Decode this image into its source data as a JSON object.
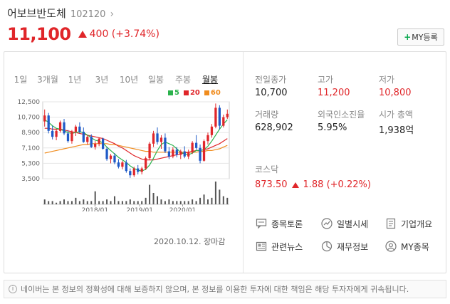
{
  "header": {
    "stock_name": "어보브반도체",
    "stock_code": "102120",
    "price": "11,100",
    "change": "400 (+3.74%)",
    "my_button": "MY등록"
  },
  "tabs": [
    "1일",
    "3개월",
    "1년",
    "3년",
    "10년",
    "일봉",
    "주봉",
    "월봉"
  ],
  "active_tab": "월봉",
  "legend": [
    {
      "label": "5",
      "color": "#2bb24c"
    },
    {
      "label": "20",
      "color": "#e0262a"
    },
    {
      "label": "60",
      "color": "#f08c1e"
    }
  ],
  "chart_data": {
    "type": "candlestick",
    "y_ticks": [
      "12,500",
      "10,700",
      "8,900",
      "7,100",
      "5,300",
      "3,500"
    ],
    "x_ticks": [
      "2018/01",
      "2019/01",
      "2020/01"
    ],
    "ylim": [
      3500,
      12500
    ],
    "candles": [
      [
        10200,
        11600,
        9600,
        10900
      ],
      [
        10900,
        11200,
        8800,
        9100
      ],
      [
        9100,
        9700,
        8100,
        8400
      ],
      [
        8400,
        9300,
        8000,
        9100
      ],
      [
        9100,
        10300,
        8900,
        10100
      ],
      [
        10100,
        10500,
        8600,
        8800
      ],
      [
        8800,
        9200,
        7700,
        7900
      ],
      [
        7900,
        9200,
        7600,
        9000
      ],
      [
        9000,
        9800,
        8500,
        9600
      ],
      [
        9600,
        10100,
        8800,
        9000
      ],
      [
        9000,
        9500,
        7700,
        7800
      ],
      [
        7800,
        8600,
        7500,
        8400
      ],
      [
        8400,
        8700,
        7100,
        7200
      ],
      [
        7200,
        7900,
        6900,
        7600
      ],
      [
        7600,
        8300,
        7300,
        8200
      ],
      [
        8200,
        8300,
        6900,
        7000
      ],
      [
        7000,
        7200,
        5600,
        5800
      ],
      [
        5800,
        6400,
        5300,
        6200
      ],
      [
        6200,
        6500,
        5200,
        5400
      ],
      [
        5400,
        5800,
        4700,
        4900
      ],
      [
        4900,
        5600,
        4600,
        5400
      ],
      [
        5400,
        5700,
        4200,
        4400
      ],
      [
        4400,
        4700,
        3600,
        3900
      ],
      [
        3900,
        4900,
        3700,
        4700
      ],
      [
        4700,
        5100,
        4000,
        4300
      ],
      [
        4300,
        4900,
        4000,
        4700
      ],
      [
        4700,
        6100,
        4500,
        5900
      ],
      [
        5900,
        7800,
        5700,
        7600
      ],
      [
        7600,
        9100,
        7200,
        8800
      ],
      [
        8800,
        9500,
        7500,
        7800
      ],
      [
        7800,
        8600,
        7000,
        8300
      ],
      [
        8300,
        8800,
        6500,
        6700
      ],
      [
        6700,
        7200,
        5800,
        6100
      ],
      [
        6100,
        7200,
        5900,
        6900
      ],
      [
        6900,
        7200,
        6000,
        6300
      ],
      [
        6300,
        6900,
        5800,
        6700
      ],
      [
        6700,
        7300,
        5900,
        6100
      ],
      [
        6100,
        6900,
        5800,
        6600
      ],
      [
        6600,
        7900,
        6400,
        7700
      ],
      [
        7700,
        8600,
        6900,
        7100
      ],
      [
        7100,
        7500,
        5300,
        5600
      ],
      [
        5600,
        8100,
        5500,
        7900
      ],
      [
        7900,
        8900,
        7500,
        8600
      ],
      [
        8600,
        9900,
        8300,
        9600
      ],
      [
        9600,
        12300,
        9400,
        11800
      ],
      [
        11800,
        12100,
        9300,
        9700
      ],
      [
        9700,
        11000,
        9500,
        10700
      ],
      [
        10700,
        11600,
        10500,
        11100
      ]
    ],
    "ma5": [
      10400,
      10100,
      9700,
      9400,
      9300,
      9100,
      8900,
      8800,
      8900,
      9000,
      8900,
      8600,
      8300,
      8000,
      7900,
      7700,
      7200,
      6800,
      6400,
      6000,
      5700,
      5400,
      5000,
      4700,
      4500,
      4400,
      4600,
      5100,
      5900,
      6800,
      7500,
      7800,
      7600,
      7400,
      7000,
      6600,
      6400,
      6300,
      6500,
      6800,
      6800,
      6900,
      7300,
      7900,
      8600,
      9300,
      9900,
      10400
    ],
    "ma20": [
      9400,
      9400,
      9300,
      9300,
      9300,
      9200,
      9100,
      9000,
      8900,
      8800,
      8700,
      8600,
      8500,
      8400,
      8300,
      8200,
      8000,
      7800,
      7600,
      7300,
      7100,
      6800,
      6500,
      6200,
      6000,
      5800,
      5700,
      5700,
      5700,
      5800,
      5900,
      6000,
      6100,
      6200,
      6300,
      6400,
      6500,
      6600,
      6700,
      6800,
      6800,
      6900,
      7000,
      7200,
      7400,
      7600,
      7900,
      8200
    ],
    "ma60": [
      6500,
      6600,
      6700,
      6800,
      6900,
      7000,
      7100,
      7200,
      7300,
      7400,
      7500,
      7500,
      7600,
      7600,
      7600,
      7600,
      7600,
      7500,
      7500,
      7400,
      7300,
      7200,
      7100,
      7000,
      6900,
      6800,
      6700,
      6700,
      6600,
      6600,
      6600,
      6600,
      6600,
      6600,
      6600,
      6600,
      6600,
      6600,
      6600,
      6600,
      6700,
      6700,
      6800,
      6800,
      6900,
      7000,
      7200,
      7400
    ],
    "volume": [
      3,
      2,
      2,
      1,
      2,
      3,
      2,
      2,
      4,
      2,
      3,
      2,
      2,
      8,
      2,
      2,
      3,
      2,
      5,
      2,
      2,
      2,
      3,
      2,
      2,
      2,
      4,
      12,
      7,
      5,
      3,
      2,
      3,
      2,
      2,
      2,
      2,
      2,
      3,
      2,
      4,
      6,
      3,
      4,
      14,
      9,
      5,
      4
    ]
  },
  "date_note": "2020.10.12. 장마감",
  "info": [
    {
      "label": "전일종가",
      "value": "10,700",
      "red": false
    },
    {
      "label": "고가",
      "value": "11,200",
      "red": true
    },
    {
      "label": "저가",
      "value": "10,800",
      "red": true
    },
    {
      "label": "거래량",
      "value": "628,902",
      "red": false
    },
    {
      "label": "외국인소진율",
      "value": "5.95%",
      "red": false
    },
    {
      "label": "시가 총액",
      "value": "1,938억",
      "red": false
    }
  ],
  "kosdaq": {
    "label": "코스닥",
    "value": "873.50",
    "change": "1.88 (+0.22%)"
  },
  "links": [
    {
      "label": "종목토론",
      "icon": "chat-icon"
    },
    {
      "label": "일별시세",
      "icon": "trend-icon"
    },
    {
      "label": "기업개요",
      "icon": "document-icon"
    },
    {
      "label": "관련뉴스",
      "icon": "news-icon"
    },
    {
      "label": "재무정보",
      "icon": "pie-chart-icon"
    },
    {
      "label": "MY종목",
      "icon": "user-icon"
    }
  ],
  "footer": "네이버는 본 정보의 정확성에 대해 보증하지 않으며, 본 정보를 이용한 투자에 대한 책임은 해당 투자자에게 귀속됩니다."
}
